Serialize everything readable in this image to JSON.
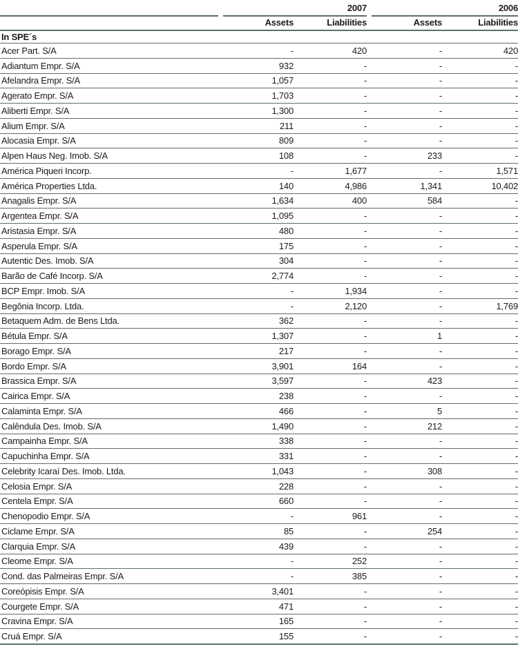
{
  "colors": {
    "rule": "#5c6e6a",
    "text": "#1b1b1b",
    "background": "#ffffff"
  },
  "table": {
    "year_headers": [
      "2007",
      "2006"
    ],
    "col_headers": [
      "Assets",
      "Liabilities",
      "Assets",
      "Liabilities"
    ],
    "section_header": "In SPE´s",
    "rows": [
      {
        "name": "Acer Part. S/A",
        "values": [
          "-",
          "420",
          "-",
          "420"
        ]
      },
      {
        "name": "Adiantum Empr. S/A",
        "values": [
          "932",
          "-",
          "-",
          "-"
        ]
      },
      {
        "name": "Afelandra Empr. S/A",
        "values": [
          "1,057",
          "-",
          "-",
          "-"
        ]
      },
      {
        "name": "Agerato Empr. S/A",
        "values": [
          "1,703",
          "-",
          "-",
          "-"
        ]
      },
      {
        "name": "Aliberti Empr. S/A",
        "values": [
          "1,300",
          "-",
          "-",
          "-"
        ]
      },
      {
        "name": "Alium Empr. S/A",
        "values": [
          "211",
          "-",
          "-",
          "-"
        ]
      },
      {
        "name": "Alocasia Empr. S/A",
        "values": [
          "809",
          "-",
          "-",
          "-"
        ]
      },
      {
        "name": "Alpen Haus Neg. Imob. S/A",
        "values": [
          "108",
          "-",
          "233",
          "-"
        ]
      },
      {
        "name": "América Piqueri Incorp.",
        "values": [
          "-",
          "1,677",
          "-",
          "1,571"
        ]
      },
      {
        "name": "América Properties Ltda.",
        "values": [
          "140",
          "4,986",
          "1,341",
          "10,402"
        ]
      },
      {
        "name": "Anagalis Empr. S/A",
        "values": [
          "1,634",
          "400",
          "584",
          "-"
        ]
      },
      {
        "name": "Argentea Empr. S/A",
        "values": [
          "1,095",
          "-",
          "-",
          "-"
        ]
      },
      {
        "name": "Aristasia Empr. S/A",
        "values": [
          "480",
          "-",
          "-",
          "-"
        ]
      },
      {
        "name": "Asperula Empr. S/A",
        "values": [
          "175",
          "-",
          "-",
          "-"
        ]
      },
      {
        "name": "Autentic Des. Imob. S/A",
        "values": [
          "304",
          "-",
          "-",
          "-"
        ]
      },
      {
        "name": "Barão de Café Incorp. S/A",
        "values": [
          "2,774",
          "-",
          "-",
          "-"
        ]
      },
      {
        "name": "BCP Empr. Imob. S/A",
        "values": [
          "-",
          "1,934",
          "-",
          "-"
        ]
      },
      {
        "name": "Begônia Incorp. Ltda.",
        "values": [
          "-",
          "2,120",
          "-",
          "1,769"
        ]
      },
      {
        "name": "Betaquem Adm. de Bens Ltda.",
        "values": [
          "362",
          "-",
          "-",
          "-"
        ]
      },
      {
        "name": "Bétula Empr. S/A",
        "values": [
          "1,307",
          "-",
          "1",
          "-"
        ]
      },
      {
        "name": "Borago Empr. S/A",
        "values": [
          "217",
          "-",
          "-",
          "-"
        ]
      },
      {
        "name": "Bordo Empr. S/A",
        "values": [
          "3,901",
          "164",
          "-",
          "-"
        ]
      },
      {
        "name": "Brassica Empr. S/A",
        "values": [
          "3,597",
          "-",
          "423",
          "-"
        ]
      },
      {
        "name": "Cairica Empr. S/A",
        "values": [
          "238",
          "-",
          "-",
          "-"
        ]
      },
      {
        "name": "Calaminta Empr. S/A",
        "values": [
          "466",
          "-",
          "5",
          "-"
        ]
      },
      {
        "name": "Calêndula Des. Imob. S/A",
        "values": [
          "1,490",
          "-",
          "212",
          "-"
        ]
      },
      {
        "name": "Campainha Empr. S/A",
        "values": [
          "338",
          "-",
          "-",
          "-"
        ]
      },
      {
        "name": "Capuchinha Empr. S/A",
        "values": [
          "331",
          "-",
          "-",
          "-"
        ]
      },
      {
        "name": "Celebrity Icaraí Des. Imob. Ltda.",
        "values": [
          "1,043",
          "-",
          "308",
          "-"
        ]
      },
      {
        "name": "Celosia Empr. S/A",
        "values": [
          "228",
          "-",
          "-",
          "-"
        ]
      },
      {
        "name": "Centela Empr. S/A",
        "values": [
          "660",
          "-",
          "-",
          "-"
        ]
      },
      {
        "name": "Chenopodio Empr. S/A",
        "values": [
          "-",
          "961",
          "-",
          "-"
        ]
      },
      {
        "name": "Ciclame Empr. S/A",
        "values": [
          "85",
          "-",
          "254",
          "-"
        ]
      },
      {
        "name": "Clarquia Empr. S/A",
        "values": [
          "439",
          "-",
          "-",
          "-"
        ]
      },
      {
        "name": "Cleome Empr. S/A",
        "values": [
          "-",
          "252",
          "-",
          "-"
        ]
      },
      {
        "name": "Cond. das Palmeiras Empr. S/A",
        "values": [
          "-",
          "385",
          "-",
          "-"
        ]
      },
      {
        "name": "Coreópisis Empr. S/A",
        "values": [
          "3,401",
          "-",
          "-",
          "-"
        ]
      },
      {
        "name": "Courgete Empr. S/A",
        "values": [
          "471",
          "-",
          "-",
          "-"
        ]
      },
      {
        "name": "Cravina Empr. S/A",
        "values": [
          "165",
          "-",
          "-",
          "-"
        ]
      },
      {
        "name": "Cruá Empr. S/A",
        "values": [
          "155",
          "-",
          "-",
          "-"
        ]
      }
    ]
  }
}
